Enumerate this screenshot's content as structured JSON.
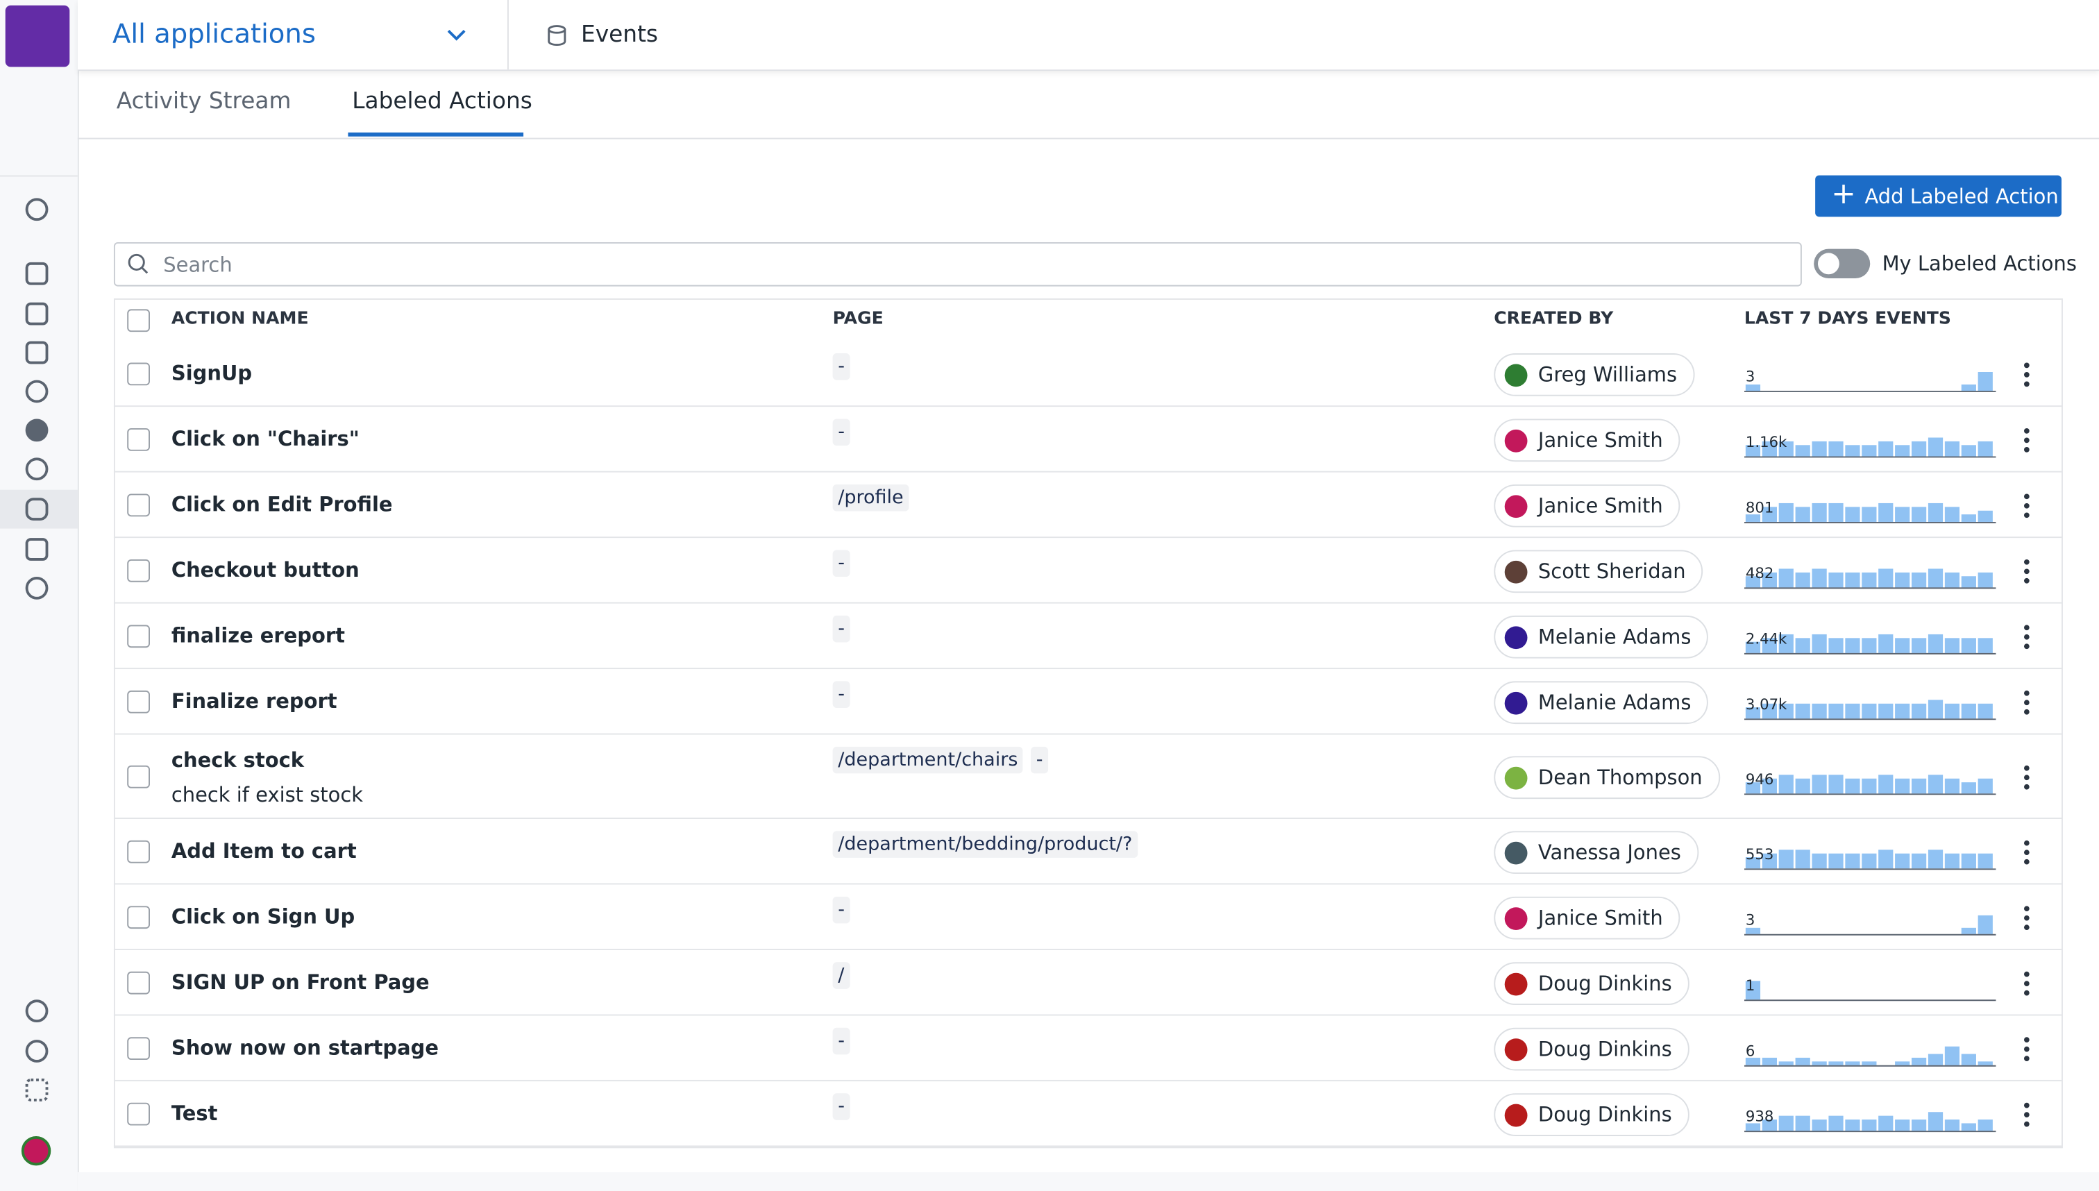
{
  "header": {
    "app_selector": "All applications",
    "section": "Events"
  },
  "tabs": [
    "Activity Stream",
    "Labeled Actions"
  ],
  "add_button": "Add Labeled Action",
  "search_placeholder": "Search",
  "toggle_label": "My Labeled Actions",
  "table": {
    "columns": [
      "ACTION NAME",
      "PAGE",
      "CREATED BY",
      "LAST 7 DAYS EVENTS"
    ],
    "rows": [
      {
        "name": "SignUp",
        "pages": [
          "-"
        ],
        "created_by": "Greg Williams",
        "events": "3",
        "spark": [
          1,
          0,
          0,
          0,
          0,
          0,
          0,
          0,
          0,
          0,
          0,
          0,
          0,
          1,
          3
        ]
      },
      {
        "name": "Click on \"Chairs\"",
        "pages": [
          "-"
        ],
        "created_by": "Janice Smith",
        "events": "1.16k",
        "spark": [
          3,
          4,
          4,
          3,
          4,
          4,
          3,
          3,
          4,
          3,
          4,
          5,
          4,
          3,
          4
        ]
      },
      {
        "name": "Click on Edit Profile",
        "pages": [
          "/profile"
        ],
        "created_by": "Janice Smith",
        "events": "801",
        "spark": [
          2,
          4,
          5,
          4,
          5,
          5,
          4,
          4,
          5,
          4,
          4,
          5,
          4,
          2,
          3
        ]
      },
      {
        "name": "Checkout button",
        "pages": [
          "-"
        ],
        "created_by": "Scott Sheridan",
        "events": "482",
        "spark": [
          3,
          4,
          5,
          4,
          5,
          4,
          4,
          4,
          5,
          4,
          4,
          5,
          4,
          3,
          4
        ]
      },
      {
        "name": "finalize ereport",
        "pages": [
          "-"
        ],
        "created_by": "Melanie Adams",
        "events": "2.44k",
        "spark": [
          3,
          4,
          5,
          4,
          5,
          4,
          4,
          4,
          5,
          4,
          4,
          5,
          4,
          4,
          4
        ]
      },
      {
        "name": "Finalize report",
        "pages": [
          "-"
        ],
        "created_by": "Melanie Adams",
        "events": "3.07k",
        "spark": [
          3,
          4,
          4,
          4,
          4,
          4,
          4,
          4,
          4,
          4,
          4,
          5,
          4,
          4,
          4
        ]
      },
      {
        "name": "check stock",
        "description": "check if exist stock",
        "pages": [
          "/department/chairs",
          "-"
        ],
        "created_by": "Dean Thompson",
        "events": "946",
        "spark": [
          3,
          4,
          5,
          4,
          5,
          5,
          4,
          4,
          5,
          4,
          4,
          5,
          4,
          3,
          4
        ]
      },
      {
        "name": "Add Item to cart",
        "pages": [
          "/department/bedding/product/?"
        ],
        "created_by": "Vanessa Jones",
        "events": "553",
        "spark": [
          3,
          4,
          5,
          5,
          4,
          4,
          4,
          4,
          5,
          4,
          4,
          5,
          4,
          4,
          4
        ]
      },
      {
        "name": "Click on Sign Up",
        "pages": [
          "-"
        ],
        "created_by": "Janice Smith",
        "events": "3",
        "spark": [
          1,
          0,
          0,
          0,
          0,
          0,
          0,
          0,
          0,
          0,
          0,
          0,
          0,
          1,
          3
        ]
      },
      {
        "name": "SIGN UP on Front Page",
        "pages": [
          "/"
        ],
        "created_by": "Doug Dinkins",
        "events": "1",
        "spark": [
          4,
          0,
          0,
          0,
          0,
          0,
          0,
          0,
          0,
          0,
          0,
          0,
          0,
          0,
          0
        ]
      },
      {
        "name": "Show now on startpage",
        "pages": [
          "-"
        ],
        "created_by": "Doug Dinkins",
        "events": "6",
        "spark": [
          2,
          2,
          1,
          2,
          1,
          1,
          1,
          1,
          0,
          1,
          2,
          3,
          5,
          3,
          1
        ]
      },
      {
        "name": "Test",
        "pages": [
          "-"
        ],
        "created_by": "Doug Dinkins",
        "events": "938",
        "spark": [
          2,
          3,
          4,
          4,
          3,
          4,
          3,
          3,
          4,
          3,
          3,
          5,
          3,
          2,
          3
        ]
      }
    ]
  }
}
